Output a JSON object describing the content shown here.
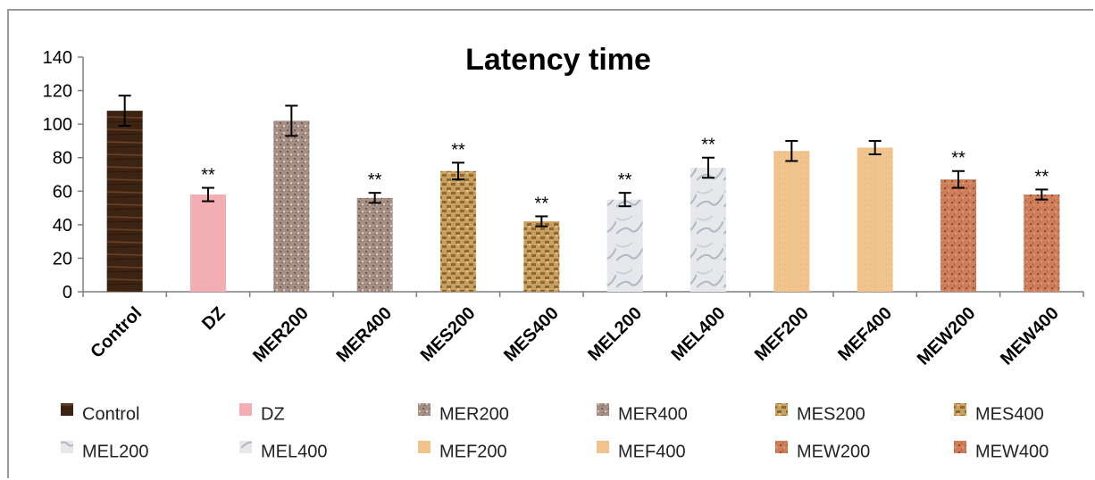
{
  "chart_data": {
    "type": "bar",
    "title": "Latency time",
    "xlabel": "",
    "ylabel": "",
    "ylim": [
      0,
      140
    ],
    "yticks": [
      0,
      20,
      40,
      60,
      80,
      100,
      120,
      140
    ],
    "grid": false,
    "legend_position": "bottom",
    "categories": [
      "Control",
      "DZ",
      "MER200",
      "MER400",
      "MES200",
      "MES400",
      "MEL200",
      "MEL400",
      "MEF200",
      "MEF400",
      "MEW200",
      "MEW400"
    ],
    "values": [
      108,
      58,
      102,
      56,
      72,
      42,
      55,
      74,
      84,
      86,
      67,
      58
    ],
    "errors": [
      9,
      4,
      9,
      3,
      5,
      3,
      4,
      6,
      6,
      4,
      5,
      3
    ],
    "annotations": [
      "",
      "**",
      "",
      "**",
      "**",
      "**",
      "**",
      "**",
      "",
      "",
      "**",
      "**"
    ],
    "colors": [
      "#3d2412",
      "#f2aeb4",
      "#a58e84",
      "#9c857d",
      "#c9a060",
      "#b99050",
      "#dcdde2",
      "#d4d9e2",
      "#f1c48e",
      "#efc085",
      "#cf7e5c",
      "#cb7a52"
    ],
    "legend": [
      "Control",
      "DZ",
      "MER200",
      "MER400",
      "MES200",
      "MES400",
      "MEL200",
      "MEL400",
      "MEF200",
      "MEF400",
      "MEW200",
      "MEW400"
    ]
  }
}
